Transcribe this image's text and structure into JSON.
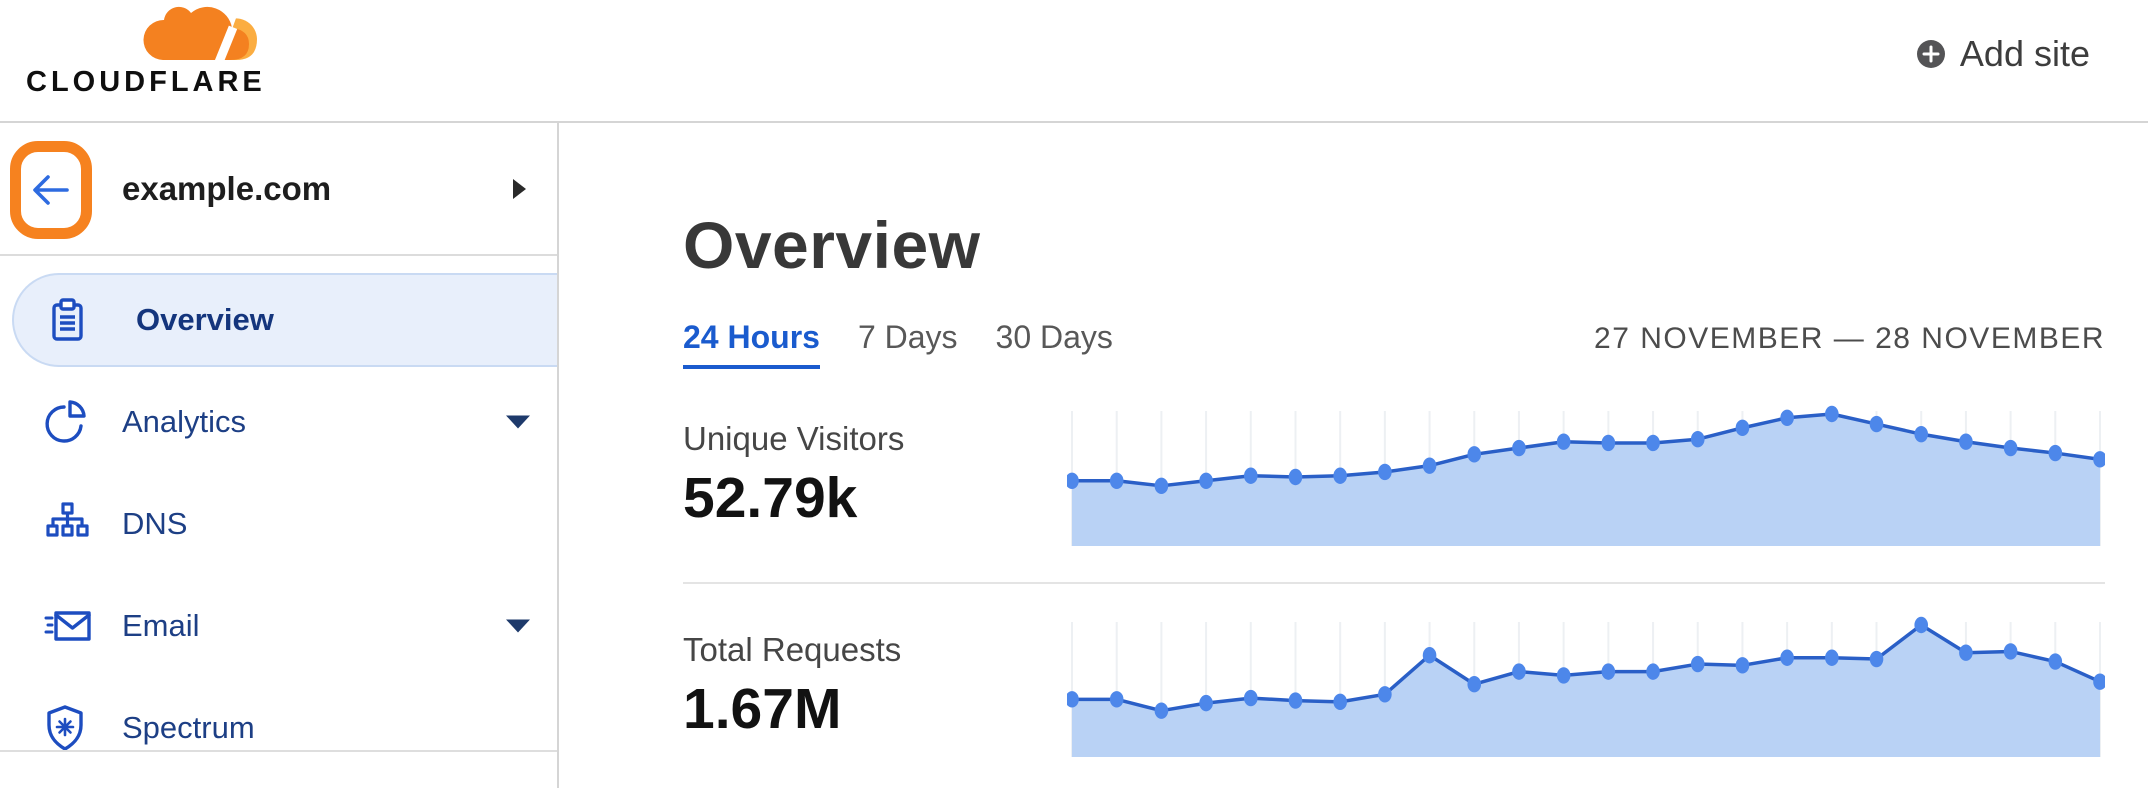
{
  "header": {
    "logo_text": "CLOUDFLARE",
    "add_site_label": "Add site"
  },
  "sidebar": {
    "site": {
      "name": "example.com"
    },
    "items": [
      {
        "label": "Overview",
        "icon": "clipboard-icon",
        "selected": true,
        "expandable": false
      },
      {
        "label": "Analytics",
        "icon": "pie-chart-icon",
        "selected": false,
        "expandable": true
      },
      {
        "label": "DNS",
        "icon": "dns-tree-icon",
        "selected": false,
        "expandable": false
      },
      {
        "label": "Email",
        "icon": "email-icon",
        "selected": false,
        "expandable": true
      },
      {
        "label": "Spectrum",
        "icon": "spectrum-shield-icon",
        "selected": false,
        "expandable": false
      }
    ]
  },
  "main": {
    "title": "Overview",
    "tabs": [
      {
        "label": "24 Hours",
        "active": true
      },
      {
        "label": "7 Days",
        "active": false
      },
      {
        "label": "30 Days",
        "active": false
      }
    ],
    "date_range": "27 NOVEMBER — 28 NOVEMBER",
    "metrics": [
      {
        "label": "Unique Visitors",
        "value": "52.79k"
      },
      {
        "label": "Total Requests",
        "value": "1.67M"
      }
    ]
  },
  "chart_data": [
    {
      "type": "area",
      "title": "Unique Visitors",
      "total_label": "52.79k",
      "x_description": "24 hourly points spanning 27 November – 28 November (no x tick labels shown)",
      "y_axis": "hidden, relative heights only (values are % of series max)",
      "grid": "vertical gridline at each data point",
      "legend": "none",
      "values_pct_of_max": [
        47,
        47,
        43,
        47,
        51,
        50,
        51,
        54,
        59,
        68,
        73,
        78,
        77,
        77,
        80,
        89,
        97,
        100,
        92,
        84,
        78,
        73,
        69,
        64
      ]
    },
    {
      "type": "area",
      "title": "Total Requests",
      "total_label": "1.67M",
      "x_description": "24 hourly points spanning 27 November – 28 November (no x tick labels shown)",
      "y_axis": "hidden, relative heights only (values are % of series max)",
      "grid": "vertical gridline at each data point",
      "legend": "none",
      "values_pct_of_max": [
        41,
        41,
        32,
        38,
        42,
        40,
        39,
        45,
        76,
        53,
        63,
        60,
        63,
        63,
        69,
        68,
        74,
        74,
        73,
        100,
        78,
        79,
        71,
        55
      ]
    }
  ],
  "colors": {
    "brand_orange": "#f48120",
    "brand_orange_light": "#fbad41",
    "annotation_orange": "#f6821f",
    "chart_line": "#2a5fc7",
    "chart_dot": "#4d87ea",
    "chart_fill": "#b9d2f5",
    "chart_gridline": "#edf0f3",
    "tab_active_blue": "#1a5bce",
    "sidebar_selected_bg": "#e8effb",
    "sidebar_icon_blue": "#1d4dc0",
    "sidebar_text_navy": "#1d3f85"
  }
}
